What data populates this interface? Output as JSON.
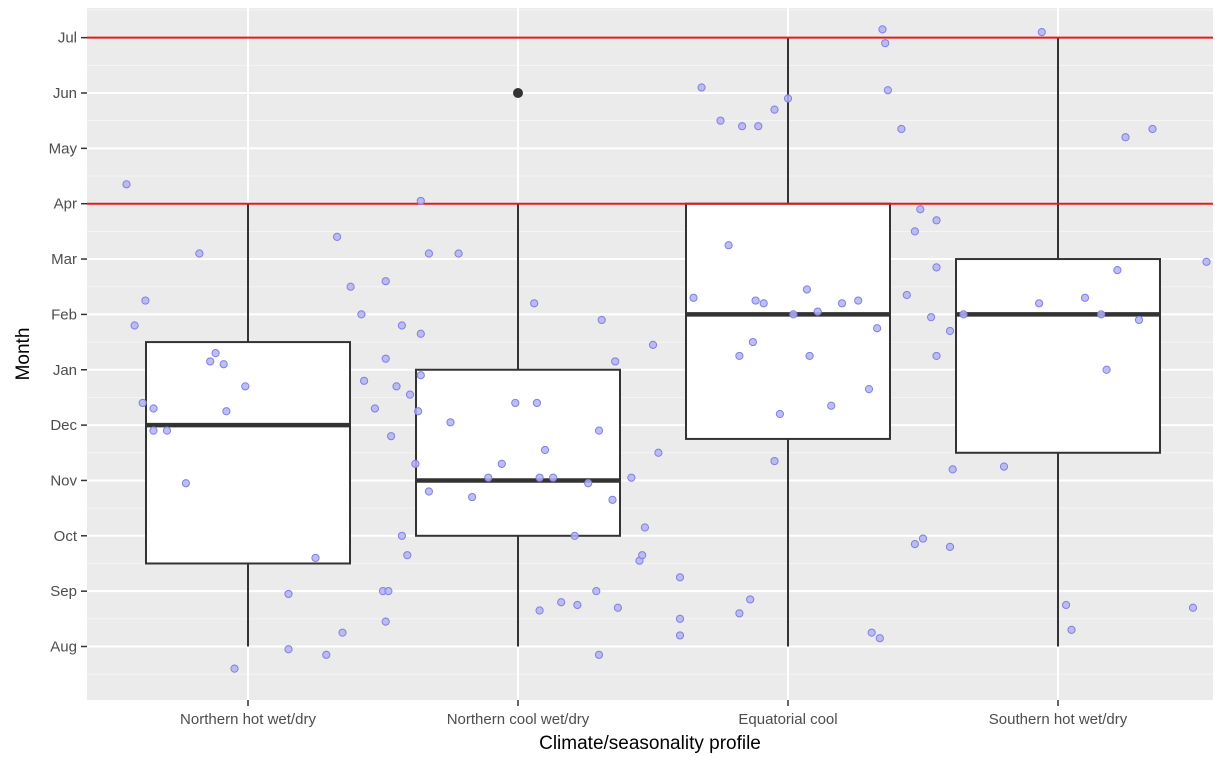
{
  "chart_data": {
    "type": "box",
    "xlabel": "Climate/seasonality profile",
    "ylabel": "Month",
    "categories": [
      "Northern hot wet/dry",
      "Northern cool wet/dry",
      "Equatorial cool",
      "Southern hot wet/dry"
    ],
    "y_ticks": [
      "Aug",
      "Sep",
      "Oct",
      "Nov",
      "Dec",
      "Jan",
      "Feb",
      "Mar",
      "Apr",
      "May",
      "Jun",
      "Jul"
    ],
    "y_axis_note": "months ordered Aug..Jul, encoded 0..11",
    "ylim": [
      -0.75,
      11.6
    ],
    "grid": true,
    "reference_lines": [
      {
        "y": 8,
        "label": "Apr",
        "color": "#e31a1c"
      },
      {
        "y": 11,
        "label": "Jul",
        "color": "#e31a1c"
      }
    ],
    "boxes": [
      {
        "category": "Northern hot wet/dry",
        "min": 0,
        "q1": 1.5,
        "median": 4,
        "q3": 5.5,
        "max": 8,
        "outliers": []
      },
      {
        "category": "Northern cool wet/dry",
        "min": 0,
        "q1": 2,
        "median": 3,
        "q3": 5,
        "max": 8,
        "outliers": [
          10
        ]
      },
      {
        "category": "Equatorial cool",
        "min": 0,
        "q1": 3.75,
        "median": 6,
        "q3": 8,
        "max": 11,
        "outliers": []
      },
      {
        "category": "Southern hot wet/dry",
        "min": 0,
        "q1": 3.5,
        "median": 6,
        "q3": 7,
        "max": 11,
        "outliers": []
      }
    ],
    "jitter_points": [
      [
        [
          -0.45,
          8.35
        ],
        [
          -0.38,
          6.25
        ],
        [
          -0.42,
          5.8
        ],
        [
          -0.35,
          4.3
        ],
        [
          -0.39,
          4.4
        ],
        [
          -0.35,
          3.9
        ],
        [
          -0.3,
          3.9
        ],
        [
          -0.14,
          5.15
        ],
        [
          -0.12,
          5.3
        ],
        [
          -0.23,
          2.95
        ],
        [
          -0.01,
          4.7
        ],
        [
          -0.08,
          4.25
        ],
        [
          -0.05,
          -0.4
        ],
        [
          -0.09,
          5.1
        ],
        [
          0.15,
          0.95
        ],
        [
          0.25,
          1.6
        ],
        [
          0.33,
          7.4
        ],
        [
          0.38,
          6.5
        ],
        [
          0.42,
          6.0
        ],
        [
          0.35,
          0.25
        ],
        [
          0.29,
          -0.15
        ],
        [
          0.15,
          -0.05
        ],
        [
          0.43,
          4.8
        ],
        [
          0.47,
          4.3
        ],
        [
          0.5,
          1.0
        ],
        [
          0.57,
          2.0
        ],
        [
          0.63,
          4.25
        ],
        [
          -0.18,
          7.1
        ]
      ],
      [
        [
          -0.49,
          5.2
        ],
        [
          -0.49,
          6.6
        ],
        [
          -0.48,
          1.0
        ],
        [
          -0.49,
          0.45
        ],
        [
          -0.43,
          5.8
        ],
        [
          -0.45,
          4.7
        ],
        [
          -0.47,
          3.8
        ],
        [
          -0.36,
          4.9
        ],
        [
          -0.36,
          5.65
        ],
        [
          -0.22,
          7.1
        ],
        [
          -0.33,
          7.1
        ],
        [
          -0.36,
          8.05
        ],
        [
          -0.38,
          3.3
        ],
        [
          -0.33,
          2.8
        ],
        [
          -0.41,
          1.65
        ],
        [
          -0.25,
          4.05
        ],
        [
          -0.17,
          2.7
        ],
        [
          -0.11,
          3.05
        ],
        [
          -0.06,
          3.3
        ],
        [
          -0.01,
          4.4
        ],
        [
          0.08,
          3.05
        ],
        [
          0.07,
          4.4
        ],
        [
          0.1,
          3.55
        ],
        [
          0.16,
          0.8
        ],
        [
          0.22,
          0.75
        ],
        [
          0.06,
          6.2
        ],
        [
          0.13,
          3.05
        ],
        [
          0.21,
          2.0
        ],
        [
          0.3,
          -0.15
        ],
        [
          0.29,
          1.0
        ],
        [
          0.26,
          2.95
        ],
        [
          0.35,
          2.65
        ],
        [
          0.37,
          0.7
        ],
        [
          0.31,
          5.9
        ],
        [
          0.36,
          5.15
        ],
        [
          0.42,
          3.05
        ],
        [
          0.47,
          2.15
        ],
        [
          0.45,
          1.55
        ],
        [
          0.46,
          1.65
        ],
        [
          0.52,
          3.5
        ],
        [
          0.6,
          1.25
        ],
        [
          0.6,
          0.5
        ],
        [
          0.5,
          5.45
        ],
        [
          0.08,
          0.65
        ],
        [
          0.3,
          3.9
        ],
        [
          -0.4,
          4.55
        ]
      ],
      [
        [
          -0.35,
          6.3
        ],
        [
          -0.32,
          10.1
        ],
        [
          -0.25,
          9.5
        ],
        [
          -0.22,
          7.25
        ],
        [
          -0.18,
          5.25
        ],
        [
          -0.12,
          6.25
        ],
        [
          -0.17,
          9.4
        ],
        [
          -0.11,
          9.4
        ],
        [
          -0.05,
          9.7
        ],
        [
          -0.09,
          6.2
        ],
        [
          -0.13,
          5.5
        ],
        [
          -0.05,
          3.35
        ],
        [
          -0.03,
          4.2
        ],
        [
          0.0,
          9.9
        ],
        [
          0.02,
          6.0
        ],
        [
          0.08,
          5.25
        ],
        [
          0.11,
          6.05
        ],
        [
          0.07,
          6.45
        ],
        [
          0.16,
          4.35
        ],
        [
          0.2,
          6.2
        ],
        [
          0.26,
          6.25
        ],
        [
          0.33,
          5.75
        ],
        [
          0.3,
          4.65
        ],
        [
          0.31,
          0.25
        ],
        [
          0.34,
          0.15
        ],
        [
          0.35,
          11.15
        ],
        [
          0.37,
          10.05
        ],
        [
          0.36,
          10.9
        ],
        [
          0.42,
          9.35
        ],
        [
          0.44,
          6.35
        ],
        [
          0.47,
          7.5
        ],
        [
          0.49,
          7.9
        ],
        [
          0.55,
          5.25
        ],
        [
          0.55,
          6.85
        ],
        [
          0.55,
          7.7
        ],
        [
          0.53,
          5.95
        ],
        [
          0.5,
          1.95
        ],
        [
          0.6,
          1.8
        ],
        [
          0.6,
          5.7
        ],
        [
          0.61,
          3.2
        ],
        [
          -0.4,
          0.2
        ],
        [
          -0.18,
          0.6
        ],
        [
          -0.14,
          0.85
        ]
      ],
      [
        [
          -0.53,
          1.85
        ],
        [
          -0.35,
          6.0
        ],
        [
          -0.06,
          11.1
        ],
        [
          -0.2,
          3.25
        ],
        [
          -0.07,
          6.2
        ],
        [
          0.03,
          0.75
        ],
        [
          0.05,
          0.3
        ],
        [
          0.1,
          6.3
        ],
        [
          0.18,
          5.0
        ],
        [
          0.16,
          6.0
        ],
        [
          0.22,
          6.8
        ],
        [
          0.25,
          9.2
        ],
        [
          0.35,
          9.35
        ],
        [
          0.3,
          5.9
        ],
        [
          0.55,
          6.95
        ],
        [
          0.5,
          0.7
        ]
      ]
    ]
  },
  "colors": {
    "panel": "#ebebeb",
    "grid_major": "#ffffff",
    "grid_minor": "#f5f5f5",
    "box_line": "#333333",
    "box_fill": "#ffffff",
    "median": "#333333",
    "jitter_fill": "#b3b3f0",
    "jitter_stroke": "#7f7fe6",
    "reference_line": "#e31a1c",
    "outlier": "#333333",
    "tick_text": "#4d4d4d"
  }
}
